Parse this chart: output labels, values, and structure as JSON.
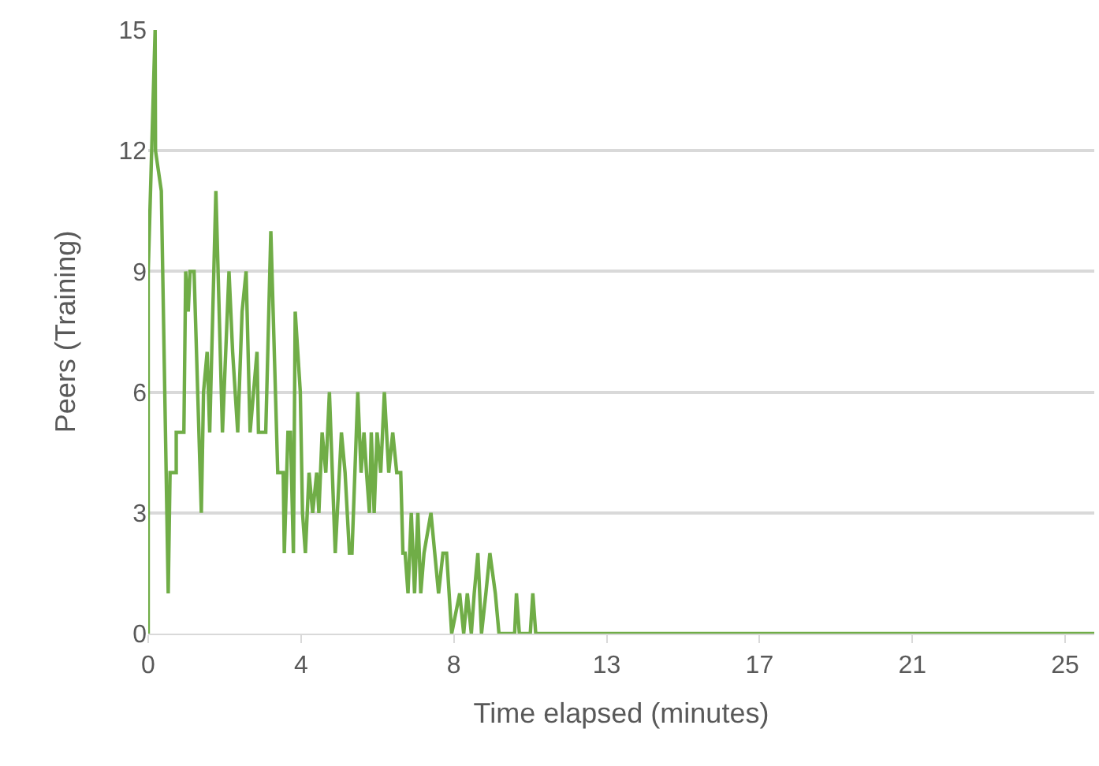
{
  "chart_data": {
    "type": "line",
    "xlabel": "Time elapsed (minutes)",
    "ylabel": "Peers (Training)",
    "x": [
      0,
      0,
      0.19,
      0.2,
      0.36,
      0.55,
      0.6,
      0.77,
      0.77,
      0.98,
      1.03,
      1.1,
      1.15,
      1.26,
      1.46,
      1.52,
      1.62,
      1.69,
      1.86,
      2.04,
      2.22,
      2.32,
      2.46,
      2.58,
      2.69,
      2.8,
      2.99,
      3.03,
      3.23,
      3.37,
      3.56,
      3.71,
      3.74,
      3.84,
      3.91,
      3.99,
      4.04,
      4.18,
      4.24,
      4.32,
      4.42,
      4.52,
      4.63,
      4.69,
      4.78,
      4.88,
      4.98,
      5.14,
      5.31,
      5.41,
      5.53,
      5.6,
      5.76,
      5.85,
      5.93,
      6.0,
      6.08,
      6.13,
      6.21,
      6.29,
      6.39,
      6.49,
      6.61,
      6.72,
      6.83,
      6.94,
      7.0,
      7.06,
      7.14,
      7.23,
      7.32,
      7.41,
      7.49,
      7.58,
      7.77,
      7.98,
      8.1,
      8.2,
      8.34,
      8.56,
      8.67,
      8.77,
      8.88,
      8.96,
      9.06,
      9.16,
      9.28,
      9.39,
      9.54,
      9.64,
      10.07,
      10.12,
      10.2,
      10.5,
      10.57,
      10.65,
      26
    ],
    "series": [
      {
        "color": "#70ad47",
        "values": [
          0,
          9,
          15,
          12,
          11,
          1,
          4,
          4,
          5,
          5,
          9,
          8,
          9,
          9,
          3,
          6,
          7,
          5,
          11,
          5,
          9,
          7,
          5,
          8,
          9,
          5,
          7,
          5,
          5,
          10,
          4,
          4,
          2,
          5,
          5,
          2,
          8,
          6,
          3,
          2,
          4,
          3,
          4,
          3,
          5,
          4,
          6,
          2,
          5,
          4,
          2,
          2,
          6,
          4,
          5,
          4,
          3,
          5,
          3,
          5,
          4,
          6,
          4,
          5,
          4,
          4,
          2,
          2,
          1,
          3,
          1,
          3,
          1,
          2,
          3,
          1,
          2,
          2,
          0,
          1,
          0,
          1,
          0,
          1,
          2,
          0,
          1,
          2,
          1,
          0,
          0,
          1,
          0,
          0,
          1,
          0,
          0
        ]
      }
    ],
    "xlim": [
      0,
      26
    ],
    "xticks": [
      0,
      {
        "value": 4.2,
        "label": "4"
      },
      {
        "value": 8.4,
        "label": "8"
      },
      {
        "value": 12.6,
        "label": "13"
      },
      {
        "value": 16.8,
        "label": "17"
      },
      {
        "value": 21,
        "label": "21"
      },
      {
        "value": 25.2,
        "label": "25"
      }
    ],
    "ylim": [
      0,
      15
    ],
    "yticks": [
      0,
      3,
      6,
      9,
      12,
      15
    ],
    "grid": "y",
    "marker": "none",
    "line_style": "solid"
  }
}
